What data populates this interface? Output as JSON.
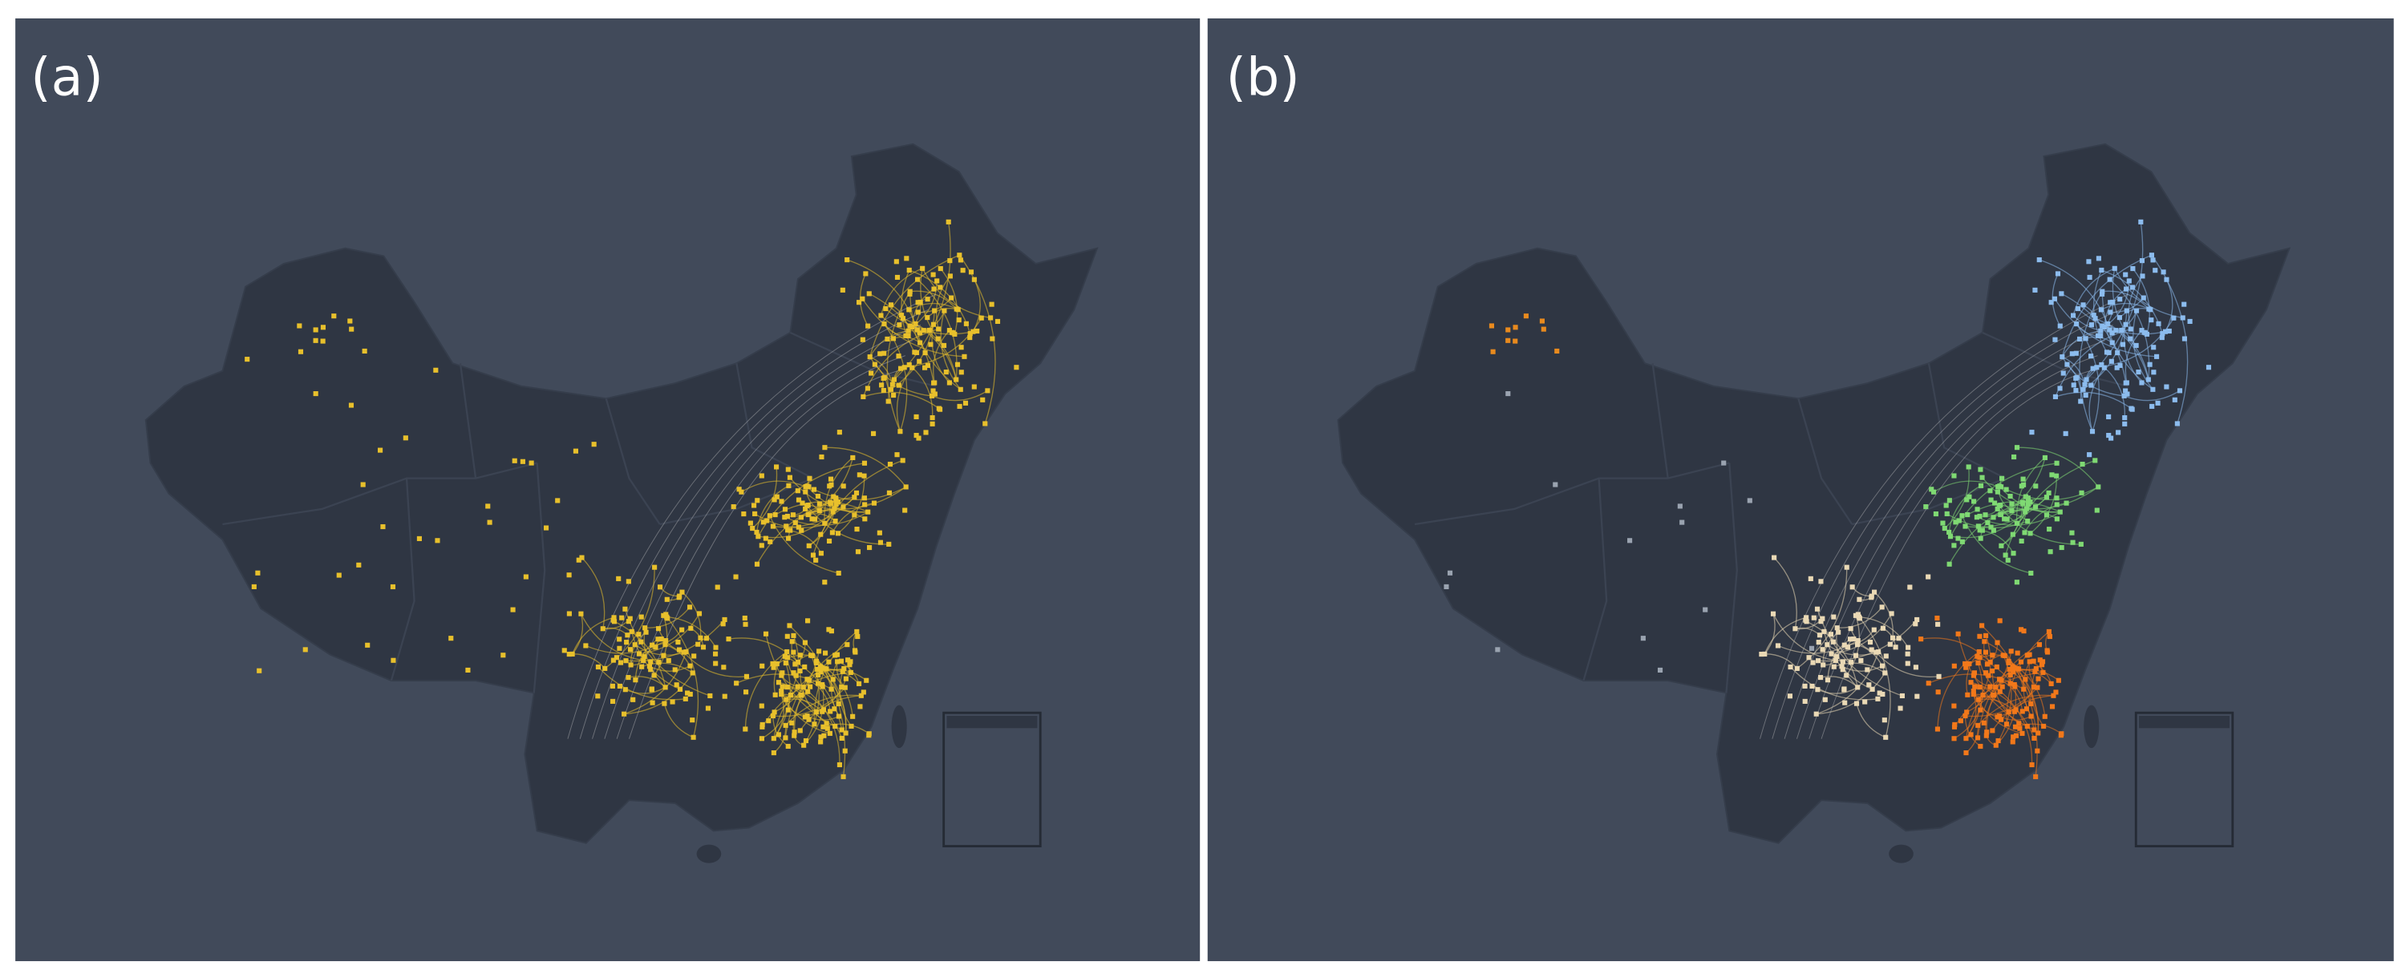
{
  "panels": [
    {
      "label": "(a)",
      "mode": "single",
      "color": "#e8c02c"
    },
    {
      "label": "(b)",
      "mode": "clusters",
      "colors": {
        "northeast": "#8cbcee",
        "central": "#7fd973",
        "southwest": "#ead9b5",
        "southeast": "#f2781a",
        "northwest": "#e88a1e"
      }
    }
  ],
  "colors": {
    "background": "#414a5a",
    "land": "#2f3643",
    "border": "#3a4251",
    "separator": "#ffffff"
  }
}
